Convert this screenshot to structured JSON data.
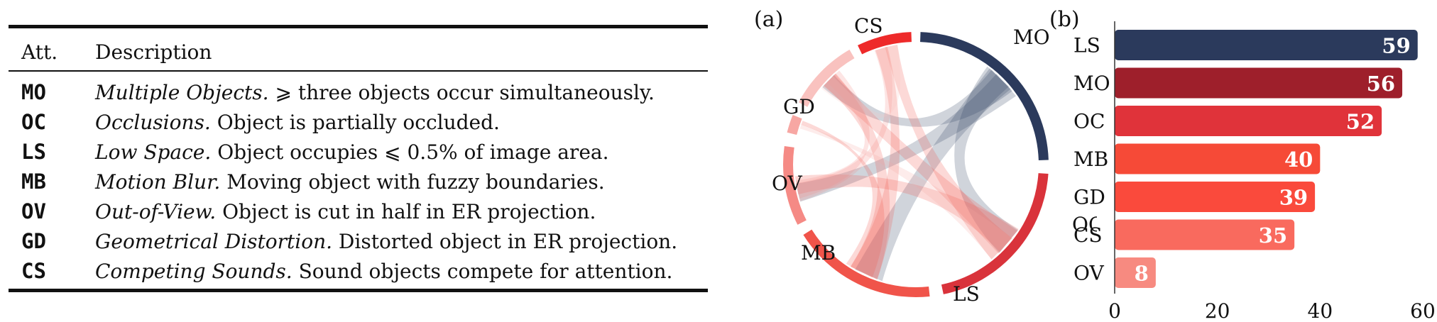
{
  "table": {
    "headers": [
      "Att.",
      "Description"
    ],
    "rows": [
      {
        "abbr": "MO",
        "name": "Multiple Objects.",
        "text": "⩾ three objects occur simultaneously."
      },
      {
        "abbr": "OC",
        "name": "Occlusions.",
        "text": "Object is partially occluded."
      },
      {
        "abbr": "LS",
        "name": "Low Space.",
        "text": "Object occupies ⩽ 0.5% of image area."
      },
      {
        "abbr": "MB",
        "name": "Motion Blur.",
        "text": "Moving object with fuzzy boundaries."
      },
      {
        "abbr": "OV",
        "name": "Out-of-View.",
        "text": "Object is cut in half in ER projection."
      },
      {
        "abbr": "GD",
        "name": "Geometrical Distortion.",
        "text": "Distorted object in ER projection."
      },
      {
        "abbr": "CS",
        "name": "Competing Sounds.",
        "text": "Sound objects compete for attention."
      }
    ]
  },
  "chord": {
    "panel_label": "(a)",
    "segments": [
      {
        "name": "MO",
        "color": "#2b3a5c"
      },
      {
        "name": "OC",
        "color": "#d9333b"
      },
      {
        "name": "LS",
        "color": "#f0544a"
      },
      {
        "name": "MB",
        "color": "#f58a85"
      },
      {
        "name": "OV",
        "color": "#f7a7a3"
      },
      {
        "name": "GD",
        "color": "#f9c2bf"
      },
      {
        "name": "CS",
        "color": "#ee2a2a"
      }
    ]
  },
  "chart_data": {
    "type": "bar",
    "panel_label": "(b)",
    "orientation": "horizontal",
    "categories": [
      "LS",
      "MO",
      "OC",
      "MB",
      "GD",
      "CS",
      "OV"
    ],
    "values": [
      59,
      56,
      52,
      40,
      39,
      35,
      8
    ],
    "value_labels": [
      "59",
      "56",
      "52",
      "40",
      "39",
      "35",
      "8"
    ],
    "colors": [
      "#2b3a5c",
      "#9e1f2b",
      "#e0333a",
      "#f64a37",
      "#fa4a3c",
      "#f96a5e",
      "#f78a80"
    ],
    "xlim": [
      0,
      60
    ],
    "xticks": [
      "0",
      "20",
      "40",
      "60"
    ],
    "title": "",
    "xlabel": "",
    "ylabel": ""
  }
}
